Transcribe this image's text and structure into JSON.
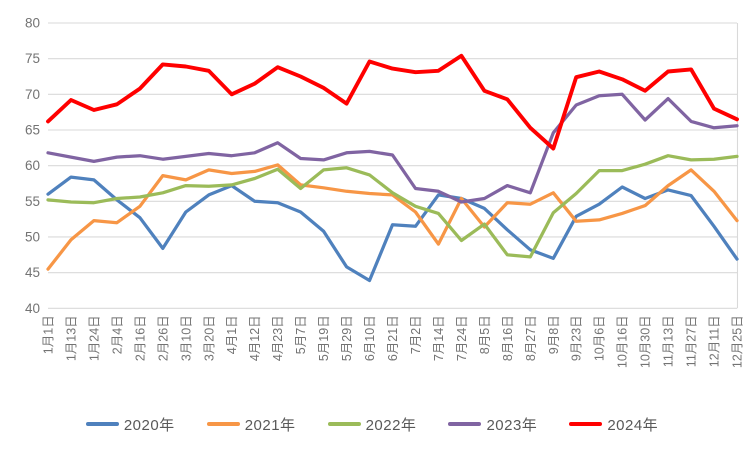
{
  "chart_data": {
    "type": "line",
    "title": "",
    "xlabel": "",
    "ylabel": "",
    "grid": true,
    "legend_position": "bottom",
    "x_labels": [
      "1月1日",
      "1月13日",
      "1月24日",
      "2月4日",
      "2月16日",
      "2月26日",
      "3月10日",
      "3月20日",
      "4月1日",
      "4月12日",
      "4月23日",
      "5月7日",
      "5月19日",
      "5月29日",
      "6月10日",
      "6月21日",
      "7月2日",
      "7月14日",
      "7月24日",
      "8月5日",
      "8月16日",
      "8月27日",
      "9月8日",
      "9月23日",
      "10月6日",
      "10月16日",
      "10月30日",
      "11月13日",
      "11月27日",
      "12月11日",
      "12月25日"
    ],
    "y_axis": {
      "min": 40,
      "max": 80,
      "step": 5,
      "tick_labels": [
        "40",
        "45",
        "50",
        "55",
        "60",
        "65",
        "70",
        "75",
        "80"
      ]
    },
    "series": [
      {
        "name": "2020年",
        "color": "#4F81BD",
        "width": 3.25,
        "values": [
          56.0,
          58.4,
          58.0,
          55.2,
          52.7,
          48.4,
          53.5,
          55.9,
          57.2,
          55.0,
          54.8,
          53.5,
          50.8,
          45.8,
          43.9,
          51.7,
          51.5,
          55.9,
          55.4,
          54.0,
          51.0,
          48.2,
          47.0,
          52.9,
          54.6,
          57.0,
          55.4,
          56.6,
          55.8,
          51.5,
          46.9
        ]
      },
      {
        "name": "2021年",
        "color": "#F79646",
        "width": 3.25,
        "values": [
          45.5,
          49.6,
          52.3,
          52.0,
          54.3,
          58.6,
          58.0,
          59.4,
          58.9,
          59.2,
          60.1,
          57.3,
          56.9,
          56.4,
          56.1,
          55.9,
          53.5,
          49.0,
          55.4,
          51.4,
          54.8,
          54.6,
          56.2,
          52.2,
          52.4,
          53.3,
          54.4,
          57.2,
          59.4,
          56.4,
          52.3
        ]
      },
      {
        "name": "2022年",
        "color": "#9BBB59",
        "width": 3.25,
        "values": [
          55.2,
          54.9,
          54.8,
          55.4,
          55.6,
          56.2,
          57.2,
          57.1,
          57.3,
          58.2,
          59.5,
          56.8,
          59.4,
          59.7,
          58.7,
          56.2,
          54.3,
          53.3,
          49.5,
          51.8,
          47.5,
          47.2,
          53.4,
          56.1,
          59.3,
          59.3,
          60.2,
          61.4,
          60.8,
          60.9,
          61.3
        ]
      },
      {
        "name": "2023年",
        "color": "#8064A2",
        "width": 3.25,
        "values": [
          61.8,
          61.2,
          60.6,
          61.2,
          61.4,
          60.9,
          61.3,
          61.7,
          61.4,
          61.8,
          63.2,
          61.0,
          60.8,
          61.8,
          62.0,
          61.5,
          56.8,
          56.4,
          54.9,
          55.4,
          57.2,
          56.2,
          64.6,
          68.5,
          69.8,
          70.0,
          66.4,
          69.4,
          66.2,
          65.3,
          65.6
        ]
      },
      {
        "name": "2024年",
        "color": "#FF0000",
        "width": 3.9,
        "values": [
          66.2,
          69.2,
          67.8,
          68.6,
          70.8,
          74.2,
          73.9,
          73.3,
          70.0,
          71.5,
          73.8,
          72.5,
          70.9,
          68.7,
          74.6,
          73.6,
          73.1,
          73.3,
          75.4,
          70.5,
          69.3,
          65.3,
          62.4,
          72.4,
          73.2,
          72.1,
          70.5,
          73.2,
          73.5,
          68.0,
          66.5
        ]
      }
    ]
  },
  "style": {
    "grid_color": "#D9D9D9",
    "axis_text_color": "#737373",
    "legend_text_color": "#595959",
    "background": "#FFFFFF"
  }
}
